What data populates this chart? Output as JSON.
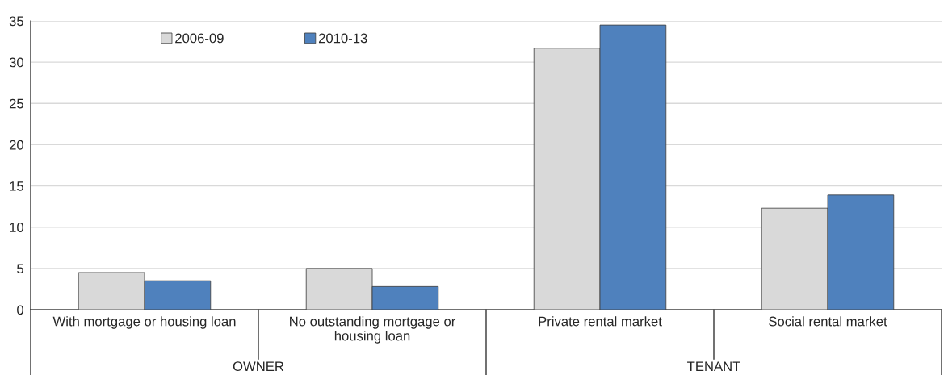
{
  "chart_data": {
    "type": "bar",
    "categories": [
      "With mortgage or housing loan",
      "No outstanding mortgage or\nhousing loan",
      "Private rental market",
      "Social rental market"
    ],
    "series": [
      {
        "name": "2006-09",
        "color": "#d9d9d9",
        "values": [
          4.5,
          5.0,
          31.7,
          12.3
        ]
      },
      {
        "name": "2010-13",
        "color": "#4f81bd",
        "values": [
          3.5,
          2.8,
          34.5,
          13.9
        ]
      }
    ],
    "annotations": [
      "OWNER",
      "TENANT"
    ],
    "ylim": [
      0,
      35
    ],
    "yticks": [
      0,
      5,
      10,
      15,
      20,
      25,
      30,
      35
    ],
    "grid": "y",
    "legend": "top left"
  }
}
